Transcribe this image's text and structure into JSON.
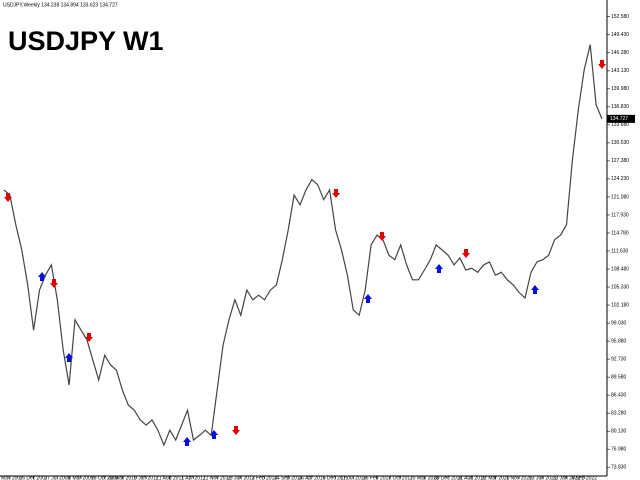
{
  "chart_data": {
    "type": "line",
    "title": "USDJPY W1",
    "info": "USDJPY,Weekly  134.238 134.894 133.623 134.727",
    "last_price": 134.727,
    "color": "#444444",
    "categories": [
      null,
      "4 May 2007",
      null,
      null,
      null,
      "16 Dec 2007",
      null,
      null,
      null,
      "27 Jul 2008",
      null,
      null,
      null,
      "8 Mar 2009",
      null,
      null,
      null,
      "18 Oct 2009",
      null,
      null,
      "30 May 2010",
      null,
      null,
      null,
      "9 Jan 2011",
      null,
      null,
      null,
      "21 Aug 2011",
      null,
      null,
      null,
      "1 Apr 2012",
      null,
      null,
      null,
      "11 Nov 2012",
      null,
      null,
      null,
      "23 Jun 2013",
      null,
      null,
      null,
      "2 Feb 2014",
      null,
      null,
      null,
      "14 Sep 2014",
      null,
      null,
      null,
      "26 Apr 2015",
      null,
      null,
      null,
      "6 Dec 2015",
      null,
      null,
      "17 Jul 2016",
      null,
      null,
      null,
      "26 Feb 2017",
      null,
      null,
      null,
      "8 Oct 2017",
      null,
      null,
      null,
      "20 May 2018",
      null,
      null,
      null,
      "30 Dec 2018",
      null,
      null,
      null,
      "11 Aug 2019",
      null,
      null,
      null,
      "22 Mar 2020",
      null,
      null,
      null,
      "1 Nov 2020",
      null,
      null,
      null,
      "13 Jun 2021",
      null,
      null,
      null,
      "23 Jan 2022",
      null,
      null,
      "4 Sep 2022",
      null,
      null,
      null
    ],
    "values": [
      122.3,
      121.4,
      116.2,
      111.8,
      105.7,
      97.8,
      104.8,
      107.4,
      109.2,
      103.1,
      94.3,
      88.2,
      99.6,
      97.8,
      96.1,
      92.6,
      89.1,
      93.4,
      91.7,
      90.8,
      87.3,
      84.7,
      83.8,
      82.1,
      81.2,
      82.1,
      80.3,
      77.7,
      80.3,
      78.6,
      81.2,
      83.8,
      78.6,
      79.4,
      80.3,
      79.4,
      87.3,
      95.2,
      99.6,
      103.1,
      100.4,
      104.8,
      103.1,
      103.9,
      103.1,
      104.8,
      105.7,
      110.1,
      115.3,
      121.4,
      119.7,
      122.3,
      124.1,
      123.2,
      120.6,
      122.3,
      115.3,
      111.8,
      107.4,
      101.3,
      100.4,
      104.8,
      112.7,
      114.4,
      113.6,
      110.9,
      110.1,
      112.7,
      109.2,
      106.6,
      106.6,
      108.3,
      110.1,
      112.7,
      111.8,
      110.9,
      109.2,
      110.4,
      108.3,
      108.6,
      107.9,
      109.2,
      109.7,
      107.4,
      107.9,
      106.6,
      105.7,
      104.4,
      103.4,
      107.9,
      109.7,
      110.1,
      110.9,
      113.6,
      114.4,
      116.2,
      127.5,
      136.3,
      143.3,
      147.7,
      137.2,
      134.7
    ],
    "ylim": [
      72.3,
      155.5
    ],
    "yticks": [
      {
        "value": 73.83,
        "label": "73.830"
      },
      {
        "value": 76.98,
        "label": "76.980"
      },
      {
        "value": 80.13,
        "label": "80.130"
      },
      {
        "value": 83.28,
        "label": "83.280"
      },
      {
        "value": 86.43,
        "label": "86.430"
      },
      {
        "value": 89.58,
        "label": "89.580"
      },
      {
        "value": 92.73,
        "label": "92.730"
      },
      {
        "value": 95.88,
        "label": "95.880"
      },
      {
        "value": 99.03,
        "label": "99.030"
      },
      {
        "value": 102.18,
        "label": "102.180"
      },
      {
        "value": 105.33,
        "label": "105.330"
      },
      {
        "value": 108.48,
        "label": "108.480"
      },
      {
        "value": 111.63,
        "label": "111.630"
      },
      {
        "value": 114.78,
        "label": "114.780"
      },
      {
        "value": 117.93,
        "label": "117.930"
      },
      {
        "value": 121.08,
        "label": "121.080"
      },
      {
        "value": 124.23,
        "label": "124.230"
      },
      {
        "value": 127.38,
        "label": "127.380"
      },
      {
        "value": 130.53,
        "label": "130.530"
      },
      {
        "value": 133.68,
        "label": "133.680"
      },
      {
        "value": 136.83,
        "label": "136.830"
      },
      {
        "value": 139.98,
        "label": "139.980"
      },
      {
        "value": 143.13,
        "label": "143.130"
      },
      {
        "value": 146.28,
        "label": "146.280"
      },
      {
        "value": 149.43,
        "label": "149.430"
      },
      {
        "value": 152.58,
        "label": "152.580"
      }
    ]
  }
}
